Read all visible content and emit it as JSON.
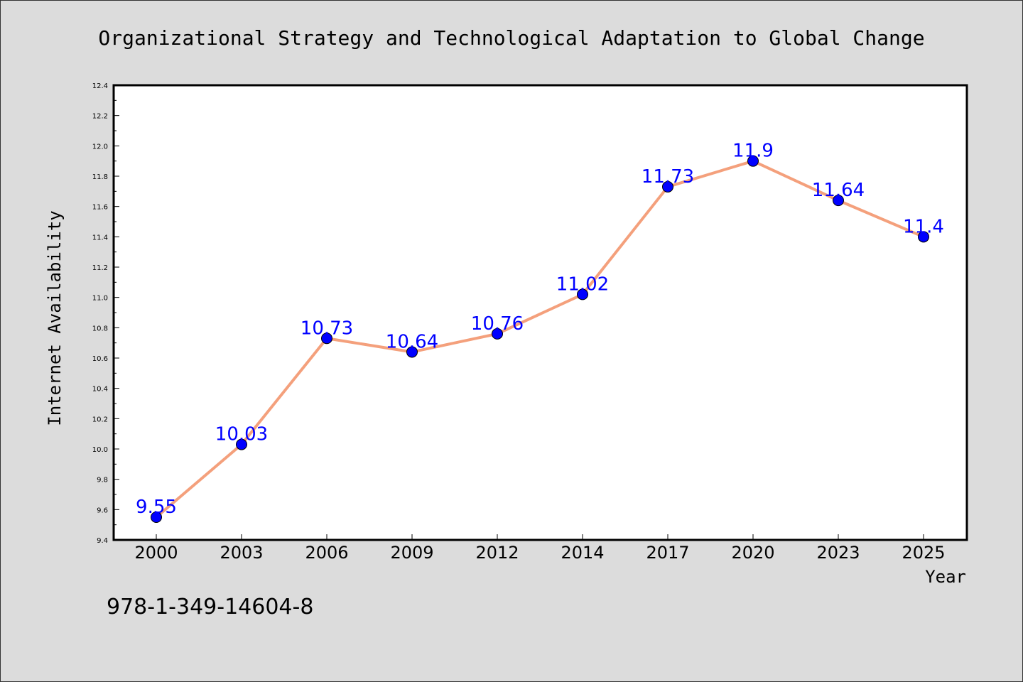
{
  "chart_data": {
    "type": "line",
    "title": "Organizational Strategy and Technological Adaptation to Global Change",
    "xlabel": "Year",
    "ylabel": "Internet Availability",
    "categories": [
      "2000",
      "2003",
      "2006",
      "2009",
      "2012",
      "2014",
      "2017",
      "2020",
      "2023",
      "2025"
    ],
    "series": [
      {
        "values": [
          9.55,
          10.03,
          10.73,
          10.64,
          10.76,
          11.02,
          11.73,
          11.9,
          11.64,
          11.4
        ],
        "data_labels": [
          "9.55",
          "10.03",
          "10.73",
          "10.64",
          "10.76",
          "11.02",
          "11.73",
          "11.9",
          "11.64",
          "11.4"
        ]
      }
    ],
    "ylim": [
      9.4,
      12.4
    ],
    "yticks": [
      "9.4",
      "9.6",
      "9.8",
      "10.0",
      "10.2",
      "10.4",
      "10.6",
      "10.8",
      "11.0",
      "11.2",
      "11.4",
      "11.6",
      "11.8",
      "12.0",
      "12.2",
      "12.4"
    ],
    "grid": false,
    "colors": {
      "line": "#f4a07c",
      "marker": "#0000ff",
      "label": "#0000ff",
      "background": "#dcdcdc",
      "plot_background": "#ffffff"
    }
  },
  "footer": {
    "isbn": "978-1-349-14604-8"
  }
}
